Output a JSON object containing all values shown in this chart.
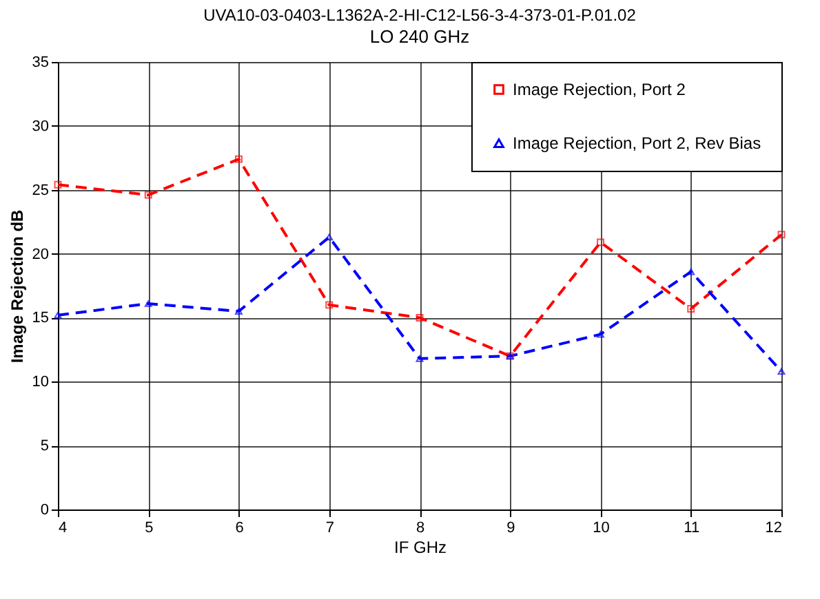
{
  "chart_data": {
    "type": "line",
    "title": "UVA10-03-0403-L1362A-2-HI-C12-L56-3-4-373-01-P.01.02",
    "subtitle": "LO  240 GHz",
    "xlabel": "IF  GHz",
    "ylabel": "Image Rejection  dB",
    "x": [
      4,
      5,
      6,
      7,
      8,
      9,
      10,
      11,
      12
    ],
    "series": [
      {
        "name": "Image Rejection, Port 2",
        "color": "#ff0000",
        "marker": "square",
        "values": [
          25.4,
          24.6,
          27.4,
          16.0,
          15.0,
          12.0,
          20.9,
          15.7,
          21.5
        ]
      },
      {
        "name": "Image Rejection, Port 2, Rev Bias",
        "color": "#0000ff",
        "marker": "triangle",
        "values": [
          15.2,
          16.1,
          15.5,
          21.3,
          11.8,
          12.0,
          13.7,
          18.6,
          10.8
        ]
      }
    ],
    "xlim": [
      4,
      12
    ],
    "xticks": [
      4,
      5,
      6,
      7,
      8,
      9,
      10,
      11,
      12
    ],
    "ylim": [
      0,
      35
    ],
    "yticks": [
      0,
      5,
      10,
      15,
      20,
      25,
      30,
      35
    ],
    "grid": true,
    "legend": "top right",
    "line_style": "dashed"
  }
}
